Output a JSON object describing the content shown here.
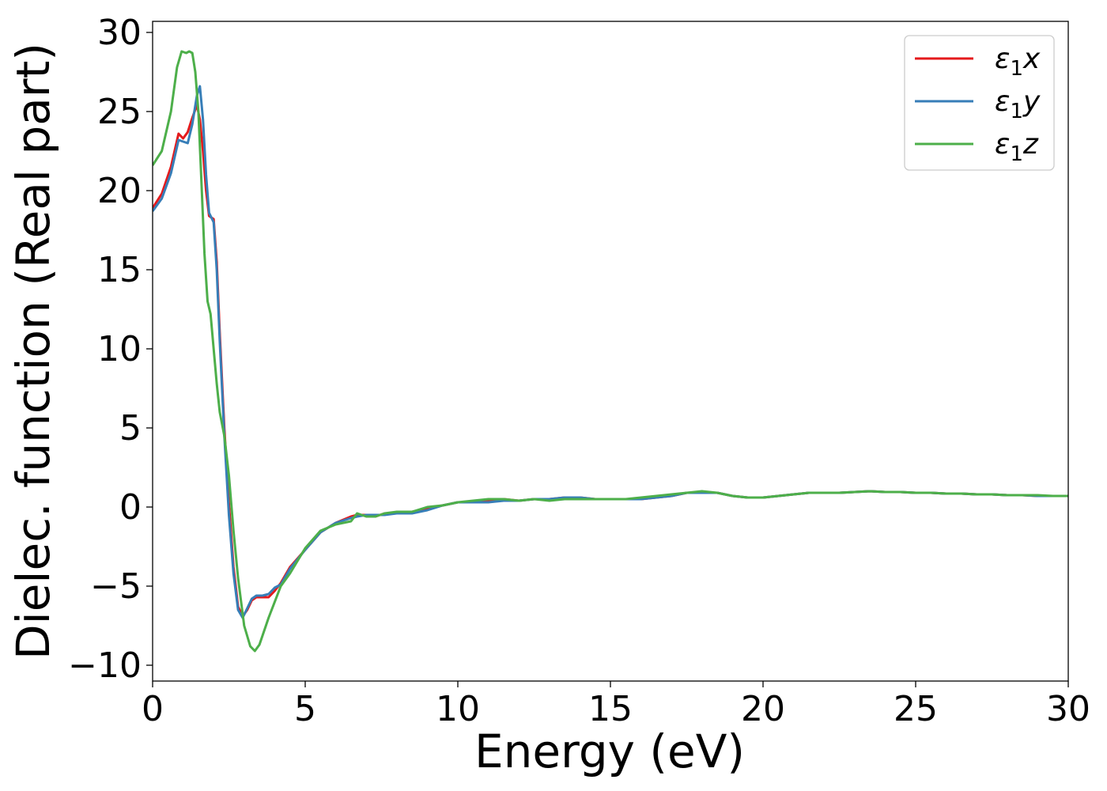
{
  "chart_data": {
    "type": "line",
    "title": "",
    "xlabel": "Energy (eV)",
    "ylabel": "Dielec. function (Real part)",
    "xlim": [
      0,
      30
    ],
    "ylim": [
      -11,
      30.7
    ],
    "xticks": [
      0,
      5,
      10,
      15,
      20,
      25,
      30
    ],
    "yticks": [
      -10,
      -5,
      0,
      5,
      10,
      15,
      20,
      25,
      30
    ],
    "xtick_labels": [
      "0",
      "5",
      "10",
      "15",
      "20",
      "25",
      "30"
    ],
    "ytick_labels": [
      "−10",
      "−5",
      "0",
      "5",
      "10",
      "15",
      "20",
      "25",
      "30"
    ],
    "grid": false,
    "legend_position": "top-right",
    "series": [
      {
        "name": "ε₁x",
        "legend_main": "ε",
        "legend_sub": "1",
        "legend_suffix": "x",
        "color": "#e41a1c",
        "x": [
          0,
          0.3,
          0.6,
          0.85,
          1.0,
          1.15,
          1.3,
          1.45,
          1.55,
          1.65,
          1.75,
          1.85,
          2.0,
          2.1,
          2.2,
          2.35,
          2.5,
          2.65,
          2.8,
          2.95,
          3.1,
          3.25,
          3.4,
          3.6,
          3.8,
          4.0,
          4.2,
          4.5,
          5.0,
          5.5,
          6.0,
          6.5,
          6.7,
          7.0,
          7.3,
          7.6,
          8.0,
          8.5,
          9.0,
          9.5,
          10.0,
          10.5,
          11.0,
          11.5,
          12.0,
          12.5,
          13.0,
          13.5,
          14.0,
          14.5,
          15.0,
          15.5,
          16.0,
          16.5,
          17.0,
          17.5,
          18.0,
          18.5,
          19.0,
          19.5,
          20.0,
          20.5,
          21.0,
          21.5,
          22.0,
          22.5,
          23.0,
          23.5,
          24.0,
          24.5,
          25.0,
          25.5,
          26.0,
          26.5,
          27.0,
          27.5,
          28.0,
          28.5,
          29.0,
          29.5,
          30.0
        ],
        "y": [
          18.9,
          19.8,
          21.5,
          23.6,
          23.3,
          23.7,
          24.6,
          25.4,
          24.5,
          22.5,
          20.0,
          18.4,
          18.2,
          15.5,
          11.0,
          5.0,
          0.2,
          -3.8,
          -6.3,
          -6.9,
          -6.5,
          -5.9,
          -5.7,
          -5.7,
          -5.7,
          -5.3,
          -4.8,
          -3.8,
          -2.7,
          -1.6,
          -1.0,
          -0.6,
          -0.5,
          -0.5,
          -0.6,
          -0.4,
          -0.4,
          -0.3,
          -0.1,
          0.1,
          0.3,
          0.3,
          0.4,
          0.5,
          0.4,
          0.5,
          0.5,
          0.6,
          0.6,
          0.5,
          0.5,
          0.5,
          0.5,
          0.6,
          0.7,
          0.9,
          0.9,
          0.9,
          0.7,
          0.6,
          0.6,
          0.7,
          0.8,
          0.9,
          0.9,
          0.9,
          0.95,
          1.0,
          0.95,
          0.95,
          0.9,
          0.9,
          0.85,
          0.85,
          0.8,
          0.8,
          0.75,
          0.75,
          0.7,
          0.7,
          0.7
        ]
      },
      {
        "name": "ε₁y",
        "legend_main": "ε",
        "legend_sub": "1",
        "legend_suffix": "y",
        "color": "#377eb8",
        "x": [
          0,
          0.3,
          0.6,
          0.85,
          1.0,
          1.15,
          1.3,
          1.45,
          1.55,
          1.65,
          1.75,
          1.85,
          2.0,
          2.1,
          2.2,
          2.35,
          2.5,
          2.65,
          2.8,
          2.95,
          3.1,
          3.25,
          3.4,
          3.6,
          3.8,
          4.0,
          4.2,
          4.5,
          5.0,
          5.5,
          6.0,
          6.5,
          6.7,
          7.0,
          7.3,
          7.6,
          8.0,
          8.5,
          9.0,
          9.5,
          10.0,
          10.5,
          11.0,
          11.5,
          12.0,
          12.5,
          13.0,
          13.5,
          14.0,
          14.5,
          15.0,
          15.5,
          16.0,
          16.5,
          17.0,
          17.5,
          18.0,
          18.5,
          19.0,
          19.5,
          20.0,
          20.5,
          21.0,
          21.5,
          22.0,
          22.5,
          23.0,
          23.5,
          24.0,
          24.5,
          25.0,
          25.5,
          26.0,
          26.5,
          27.0,
          27.5,
          28.0,
          28.5,
          29.0,
          29.5,
          30.0
        ],
        "y": [
          18.7,
          19.5,
          21.1,
          23.2,
          23.1,
          23.0,
          24.2,
          26.0,
          26.6,
          24.5,
          21.0,
          18.6,
          18.0,
          15.0,
          10.5,
          4.5,
          -0.5,
          -4.2,
          -6.5,
          -7.0,
          -6.4,
          -5.8,
          -5.6,
          -5.6,
          -5.5,
          -5.1,
          -4.9,
          -3.9,
          -2.7,
          -1.6,
          -1.0,
          -0.7,
          -0.6,
          -0.5,
          -0.5,
          -0.5,
          -0.4,
          -0.4,
          -0.2,
          0.1,
          0.3,
          0.3,
          0.3,
          0.4,
          0.4,
          0.5,
          0.5,
          0.6,
          0.6,
          0.5,
          0.5,
          0.5,
          0.5,
          0.6,
          0.7,
          0.9,
          0.9,
          0.9,
          0.7,
          0.6,
          0.6,
          0.7,
          0.8,
          0.9,
          0.9,
          0.9,
          0.95,
          1.0,
          0.95,
          0.95,
          0.9,
          0.9,
          0.85,
          0.85,
          0.8,
          0.8,
          0.75,
          0.75,
          0.7,
          0.7,
          0.7
        ]
      },
      {
        "name": "ε₁z",
        "legend_main": "ε",
        "legend_sub": "1",
        "legend_suffix": "z",
        "color": "#4daf4a",
        "x": [
          0,
          0.3,
          0.6,
          0.8,
          0.95,
          1.1,
          1.2,
          1.3,
          1.4,
          1.5,
          1.6,
          1.7,
          1.8,
          1.9,
          2.0,
          2.1,
          2.2,
          2.35,
          2.5,
          2.65,
          2.8,
          3.0,
          3.2,
          3.35,
          3.5,
          3.8,
          4.2,
          4.5,
          5.0,
          5.5,
          6.0,
          6.5,
          6.7,
          7.0,
          7.3,
          7.6,
          8.0,
          8.5,
          9.0,
          9.5,
          10.0,
          10.5,
          11.0,
          11.5,
          12.0,
          12.5,
          13.0,
          13.5,
          14.0,
          14.5,
          15.0,
          15.5,
          16.0,
          16.5,
          17.0,
          17.5,
          18.0,
          18.5,
          19.0,
          19.5,
          20.0,
          20.5,
          21.0,
          21.5,
          22.0,
          22.5,
          23.0,
          23.5,
          24.0,
          24.5,
          25.0,
          25.5,
          26.0,
          26.5,
          27.0,
          27.5,
          28.0,
          28.5,
          29.0,
          29.5,
          30.0
        ],
        "y": [
          21.6,
          22.5,
          25.0,
          27.8,
          28.8,
          28.7,
          28.8,
          28.7,
          27.5,
          25.0,
          20.5,
          16.0,
          13.0,
          12.2,
          10.0,
          7.8,
          6.0,
          4.5,
          2.0,
          -1.5,
          -4.5,
          -7.5,
          -8.8,
          -9.1,
          -8.7,
          -7.0,
          -5.0,
          -4.2,
          -2.6,
          -1.5,
          -1.1,
          -0.9,
          -0.4,
          -0.6,
          -0.6,
          -0.4,
          -0.3,
          -0.3,
          0.0,
          0.1,
          0.3,
          0.4,
          0.5,
          0.5,
          0.4,
          0.5,
          0.4,
          0.5,
          0.5,
          0.5,
          0.5,
          0.5,
          0.6,
          0.7,
          0.8,
          0.9,
          1.0,
          0.9,
          0.7,
          0.6,
          0.6,
          0.7,
          0.8,
          0.9,
          0.9,
          0.9,
          0.95,
          1.0,
          0.95,
          0.95,
          0.9,
          0.9,
          0.85,
          0.85,
          0.8,
          0.8,
          0.75,
          0.75,
          0.75,
          0.7,
          0.7
        ]
      }
    ]
  }
}
